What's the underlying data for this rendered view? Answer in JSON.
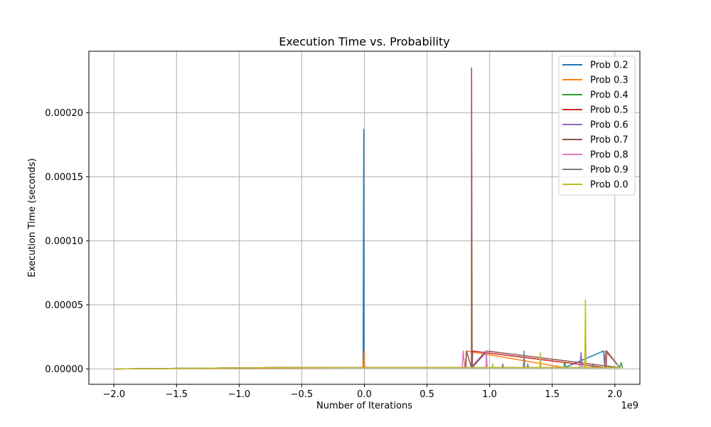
{
  "chart_data": {
    "type": "line",
    "title": "Execution Time vs. Probability",
    "xlabel": "Number of Iterations",
    "ylabel": "Execution Time (seconds)",
    "x_offset_label": "1e9",
    "x_scale": 1000000000,
    "xlim": [
      -2.2,
      2.2
    ],
    "ylim": [
      -1.2e-05,
      0.000248
    ],
    "grid": true,
    "legend_position": "top-right",
    "x_ticks": [
      {
        "value": -2.0,
        "label": "−2.0"
      },
      {
        "value": -1.5,
        "label": "−1.5"
      },
      {
        "value": -1.0,
        "label": "−1.0"
      },
      {
        "value": -0.5,
        "label": "−0.5"
      },
      {
        "value": 0.0,
        "label": "0.0"
      },
      {
        "value": 0.5,
        "label": "0.5"
      },
      {
        "value": 1.0,
        "label": "1.0"
      },
      {
        "value": 1.5,
        "label": "1.5"
      },
      {
        "value": 2.0,
        "label": "2.0"
      }
    ],
    "y_ticks": [
      {
        "value": 0.0,
        "label": "0.00000"
      },
      {
        "value": 5e-05,
        "label": "0.00005"
      },
      {
        "value": 0.0001,
        "label": "0.00010"
      },
      {
        "value": 0.00015,
        "label": "0.00015"
      },
      {
        "value": 0.0002,
        "label": "0.00020"
      }
    ],
    "series": [
      {
        "name": "Prob 0.2",
        "color": "#1f77b4",
        "x": [
          -1.99,
          -0.7,
          -0.01,
          -0.005,
          -0.003,
          0.0,
          1.6,
          1.91,
          1.92
        ],
        "y": [
          0.0,
          1e-06,
          1e-06,
          0.000187,
          1e-06,
          1e-06,
          1e-06,
          1.4e-05,
          1e-06
        ]
      },
      {
        "name": "Prob 0.3",
        "color": "#ff7f0e",
        "x": [
          -1.99,
          -0.01,
          0.0,
          0.002,
          0.8,
          0.82,
          1.6,
          2.03
        ],
        "y": [
          0.0,
          1e-06,
          1.4e-05,
          1e-06,
          1e-06,
          1.4e-05,
          1e-06,
          1e-06
        ]
      },
      {
        "name": "Prob 0.4",
        "color": "#2ca02c",
        "x": [
          -1.99,
          -0.69,
          1.59,
          1.6,
          1.61,
          2.04,
          2.05,
          2.06
        ],
        "y": [
          0.0,
          1e-06,
          1e-06,
          5e-06,
          1e-06,
          1e-06,
          5e-06,
          1e-06
        ]
      },
      {
        "name": "Prob 0.5",
        "color": "#d62728",
        "x": [
          -1.99,
          -0.69,
          0.86,
          0.865,
          1.93,
          1.935,
          2.04
        ],
        "y": [
          0.0,
          1e-06,
          1e-06,
          1.4e-05,
          1e-06,
          1.4e-05,
          1e-06
        ]
      },
      {
        "name": "Prob 0.6",
        "color": "#9467bd",
        "x": [
          -1.99,
          -0.69,
          0.85,
          0.97,
          0.98,
          1.72,
          1.73,
          1.74,
          2.04
        ],
        "y": [
          0.0,
          1e-06,
          1e-06,
          1.4e-05,
          1e-06,
          1e-06,
          1.3e-05,
          1e-06,
          1e-06
        ]
      },
      {
        "name": "Prob 0.7",
        "color": "#8c564b",
        "x": [
          -1.99,
          -0.69,
          0.81,
          0.815,
          0.855,
          0.856,
          0.86,
          0.98,
          2.04
        ],
        "y": [
          0.0,
          1e-06,
          1e-06,
          1.4e-05,
          1e-06,
          0.000235,
          1e-06,
          1.4e-05,
          1e-06
        ]
      },
      {
        "name": "Prob 0.8",
        "color": "#e377c2",
        "x": [
          -1.99,
          -0.69,
          0.78,
          0.79,
          0.8,
          0.97,
          0.975,
          0.98,
          2.04
        ],
        "y": [
          0.0,
          1e-06,
          1e-06,
          1.4e-05,
          1e-06,
          1e-06,
          1.4e-05,
          1e-06,
          1e-06
        ]
      },
      {
        "name": "Prob 0.9",
        "color": "#7f7f7f",
        "x": [
          -1.99,
          -0.69,
          1.1,
          1.105,
          1.11,
          1.27,
          1.275,
          1.28,
          1.3,
          1.305,
          1.31,
          1.82,
          1.825,
          1.83,
          1.92,
          1.925,
          2.04
        ],
        "y": [
          0.0,
          1e-06,
          1e-06,
          4e-06,
          1e-06,
          1e-06,
          1.4e-05,
          1e-06,
          1e-06,
          4e-06,
          1e-06,
          1e-06,
          4e-06,
          1e-06,
          1e-06,
          1.4e-05,
          1e-06
        ]
      },
      {
        "name": "Prob 0.0",
        "color": "#bcbd22",
        "x": [
          -1.99,
          -0.69,
          1.02,
          1.025,
          1.03,
          1.4,
          1.405,
          1.41,
          1.76,
          1.765,
          1.77,
          2.04
        ],
        "y": [
          0.0,
          1e-06,
          1e-06,
          4e-06,
          1e-06,
          1e-06,
          1.3e-05,
          1e-06,
          1e-06,
          5.4e-05,
          1e-06,
          1e-06
        ]
      }
    ]
  }
}
